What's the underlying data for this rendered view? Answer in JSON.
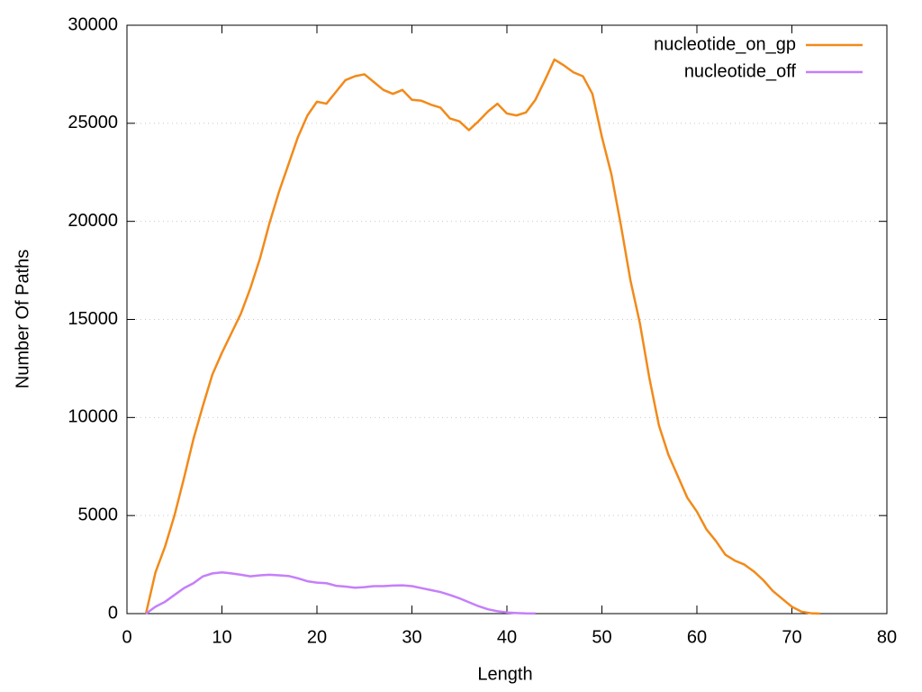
{
  "chart_data": {
    "type": "line",
    "xlabel": "Length",
    "ylabel": "Number Of Paths",
    "xlim": [
      0,
      80
    ],
    "xticks": [
      0,
      10,
      20,
      30,
      40,
      50,
      60,
      70,
      80
    ],
    "ylim": [
      0,
      30000
    ],
    "yticks": [
      0,
      5000,
      10000,
      15000,
      20000,
      25000,
      30000
    ],
    "grid": true,
    "legend": "top-right",
    "series": [
      {
        "name": "nucleotide_on_gp",
        "color": "#f28a1a",
        "x": [
          2,
          3,
          4,
          5,
          6,
          7,
          8,
          9,
          10,
          11,
          12,
          13,
          14,
          15,
          16,
          17,
          18,
          19,
          20,
          21,
          22,
          23,
          24,
          25,
          26,
          27,
          28,
          29,
          30,
          31,
          32,
          33,
          34,
          35,
          36,
          37,
          38,
          39,
          40,
          41,
          42,
          43,
          44,
          45,
          46,
          47,
          48,
          49,
          50,
          51,
          52,
          53,
          54,
          55,
          56,
          57,
          58,
          59,
          60,
          61,
          62,
          63,
          64,
          65,
          66,
          67,
          68,
          69,
          70,
          71,
          72,
          73
        ],
        "values": [
          0,
          2100,
          3400,
          5000,
          6900,
          8900,
          10600,
          12200,
          13300,
          14300,
          15300,
          16600,
          18100,
          19900,
          21500,
          22900,
          24300,
          25400,
          26100,
          26000,
          26600,
          27200,
          27400,
          27500,
          27100,
          26700,
          26500,
          26700,
          26200,
          26150,
          25950,
          25800,
          25250,
          25100,
          24650,
          25100,
          25600,
          26000,
          25500,
          25400,
          25550,
          26200,
          27200,
          28250,
          27950,
          27600,
          27400,
          26500,
          24300,
          22400,
          19800,
          17000,
          14800,
          12000,
          9600,
          8100,
          7000,
          5900,
          5200,
          4300,
          3700,
          3000,
          2700,
          2500,
          2150,
          1700,
          1150,
          750,
          350,
          100,
          20,
          0
        ]
      },
      {
        "name": "nucleotide_off",
        "color": "#c57ffa",
        "x": [
          2,
          3,
          4,
          5,
          6,
          7,
          8,
          9,
          10,
          11,
          12,
          13,
          14,
          15,
          16,
          17,
          18,
          19,
          20,
          21,
          22,
          23,
          24,
          25,
          26,
          27,
          28,
          29,
          30,
          31,
          32,
          33,
          34,
          35,
          36,
          37,
          38,
          39,
          40,
          41,
          42,
          43
        ],
        "values": [
          0,
          350,
          600,
          950,
          1300,
          1550,
          1900,
          2050,
          2100,
          2050,
          1980,
          1900,
          1950,
          1980,
          1950,
          1920,
          1800,
          1650,
          1580,
          1550,
          1420,
          1380,
          1320,
          1350,
          1400,
          1400,
          1430,
          1440,
          1400,
          1300,
          1200,
          1100,
          950,
          780,
          580,
          380,
          220,
          120,
          60,
          30,
          10,
          5
        ]
      }
    ]
  }
}
